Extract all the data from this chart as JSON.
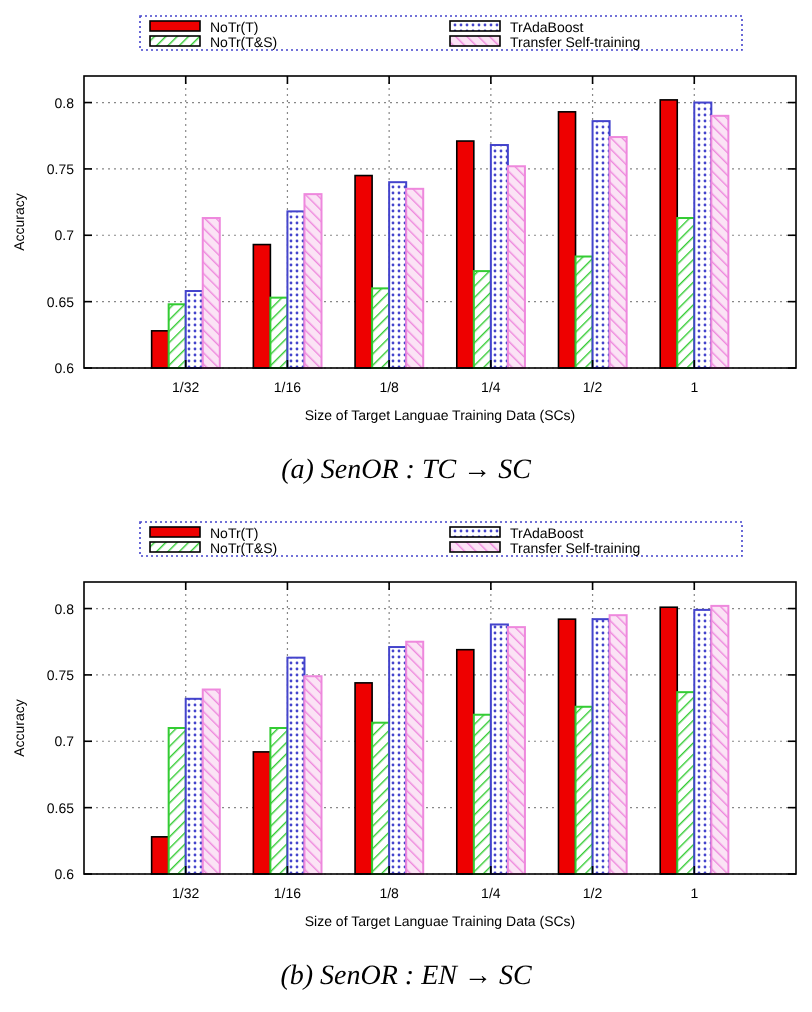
{
  "chart_data": [
    {
      "type": "bar",
      "xlabel": "Size of  Target Languae Training Data (SCs)",
      "ylabel": "Accuracy",
      "annotations": [
        "(a) SenOR : TC → SC"
      ],
      "categories": [
        "1/32",
        "1/16",
        "1/8",
        "1/4",
        "1/2",
        "1"
      ],
      "ylim": [
        0.6,
        0.82
      ],
      "yticks": [
        0.6,
        0.65,
        0.7,
        0.75,
        0.8
      ],
      "grid": true,
      "legend": "top",
      "series": [
        {
          "name": "NoTr(T)",
          "color": "#ee0000",
          "values": [
            0.628,
            0.693,
            0.745,
            0.771,
            0.793,
            0.802
          ]
        },
        {
          "name": "NoTr(T&S)",
          "color": "#33cc33",
          "values": [
            0.648,
            0.653,
            0.66,
            0.673,
            0.684,
            0.713
          ]
        },
        {
          "name": "TrAdaBoost",
          "color": "#4444cc",
          "values": [
            0.658,
            0.718,
            0.74,
            0.768,
            0.786,
            0.8
          ]
        },
        {
          "name": "Transfer Self-training",
          "color": "#ee88dd",
          "values": [
            0.713,
            0.731,
            0.735,
            0.752,
            0.774,
            0.79
          ]
        }
      ]
    },
    {
      "type": "bar",
      "xlabel": "Size of  Target Languae Training Data (SCs)",
      "ylabel": "Accuracy",
      "annotations": [
        "(b) SenOR : EN → SC"
      ],
      "categories": [
        "1/32",
        "1/16",
        "1/8",
        "1/4",
        "1/2",
        "1"
      ],
      "ylim": [
        0.6,
        0.82
      ],
      "yticks": [
        0.6,
        0.65,
        0.7,
        0.75,
        0.8
      ],
      "grid": true,
      "legend": "top",
      "series": [
        {
          "name": "NoTr(T)",
          "color": "#ee0000",
          "values": [
            0.628,
            0.692,
            0.744,
            0.769,
            0.792,
            0.801
          ]
        },
        {
          "name": "NoTr(T&S)",
          "color": "#33cc33",
          "values": [
            0.71,
            0.71,
            0.714,
            0.72,
            0.726,
            0.737
          ]
        },
        {
          "name": "TrAdaBoost",
          "color": "#4444cc",
          "values": [
            0.732,
            0.763,
            0.771,
            0.788,
            0.792,
            0.799
          ]
        },
        {
          "name": "Transfer Self-training",
          "color": "#ee88dd",
          "values": [
            0.739,
            0.749,
            0.775,
            0.786,
            0.795,
            0.802
          ]
        }
      ]
    }
  ]
}
